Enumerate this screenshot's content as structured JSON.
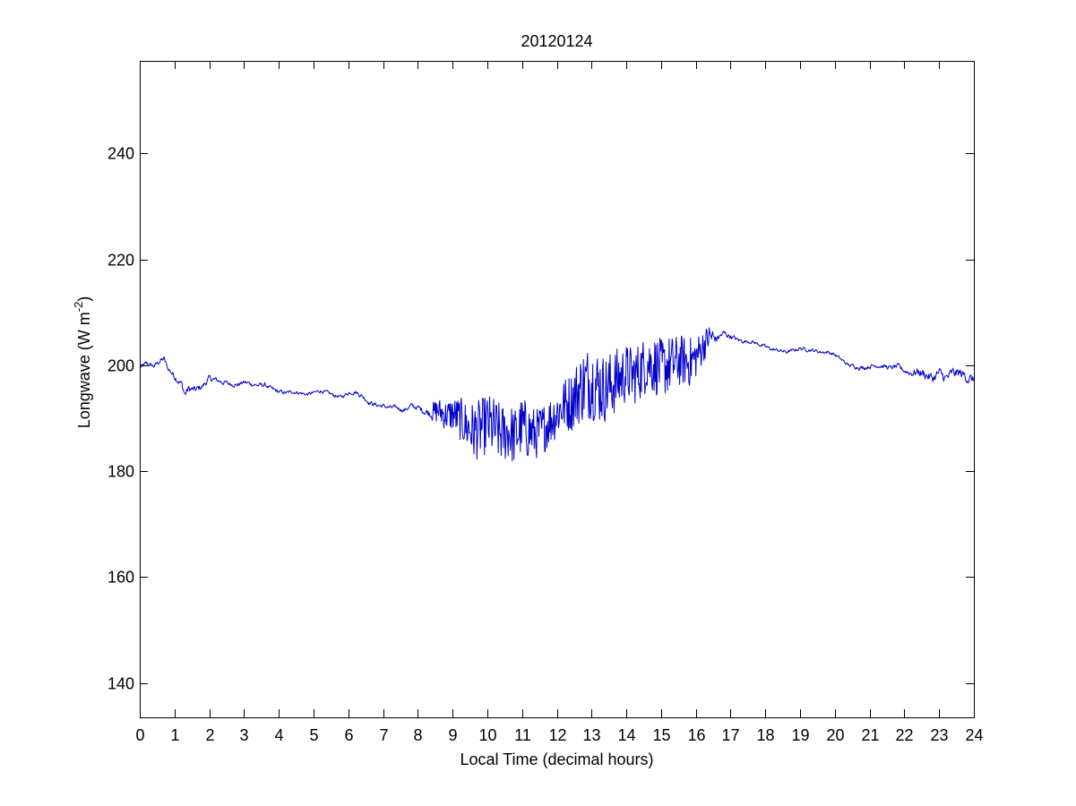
{
  "chart_data": {
    "type": "line",
    "title": "20120124",
    "xlabel": "Local Time (decimal hours)",
    "ylabel": {
      "text": "Longwave (W m",
      "superscript": "-2",
      "suffix": ")"
    },
    "xlim": [
      0,
      24
    ],
    "ylim": [
      133.5,
      257.5
    ],
    "xticks": [
      0,
      1,
      2,
      3,
      4,
      5,
      6,
      7,
      8,
      9,
      10,
      11,
      12,
      13,
      14,
      15,
      16,
      17,
      18,
      19,
      20,
      21,
      22,
      23,
      24
    ],
    "yticks": [
      140,
      160,
      180,
      200,
      220,
      240
    ],
    "grid": false,
    "line_color": "#0000cc",
    "series": [
      {
        "x": [
          0.0,
          0.2,
          0.4,
          0.6,
          0.7,
          0.8,
          1.0,
          1.2,
          1.3,
          1.4,
          1.6,
          1.8,
          2.0,
          2.2,
          2.4,
          2.6,
          2.8,
          3.0,
          3.2,
          3.4,
          3.6,
          3.8,
          4.0,
          4.2,
          4.4,
          4.6,
          4.8,
          5.0,
          5.2,
          5.4,
          5.6,
          5.8,
          6.0,
          6.2,
          6.4,
          6.6,
          6.8,
          7.0,
          7.2,
          7.4,
          7.6,
          7.8,
          8.0,
          8.2,
          8.4,
          8.6,
          8.8,
          9.0,
          9.2,
          9.4,
          9.6,
          9.8,
          10.0,
          10.2,
          10.4,
          10.6,
          10.8,
          11.0,
          11.2,
          11.4,
          11.6,
          11.8,
          12.0,
          12.2,
          12.4,
          12.6,
          12.8,
          13.0,
          13.2,
          13.4,
          13.6,
          13.8,
          14.0,
          14.2,
          14.4,
          14.6,
          14.8,
          15.0,
          15.2,
          15.4,
          15.6,
          15.8,
          16.0,
          16.2,
          16.4,
          16.6,
          16.8,
          17.0,
          17.2,
          17.4,
          17.6,
          17.8,
          18.0,
          18.2,
          18.4,
          18.6,
          18.8,
          19.0,
          19.2,
          19.4,
          19.6,
          19.8,
          20.0,
          20.2,
          20.4,
          20.6,
          20.8,
          21.0,
          21.2,
          21.4,
          21.6,
          21.8,
          22.0,
          22.2,
          22.4,
          22.6,
          22.8,
          23.0,
          23.2,
          23.4,
          23.6,
          23.8,
          24.0
        ],
        "y": [
          199.5,
          200.3,
          199.8,
          200.9,
          201.2,
          199.5,
          198.0,
          196.5,
          194.5,
          195.5,
          195.3,
          196.0,
          197.5,
          197.2,
          196.8,
          196.5,
          196.3,
          196.8,
          196.5,
          196.2,
          196.3,
          195.5,
          195.0,
          194.8,
          195.0,
          194.8,
          194.5,
          194.8,
          195.2,
          194.8,
          194.3,
          194.0,
          194.8,
          195.0,
          194.2,
          193.0,
          192.5,
          192.3,
          192.0,
          192.0,
          191.5,
          192.3,
          192.0,
          191.3,
          191.0,
          191.5,
          190.5,
          190.8,
          190.0,
          188.5,
          187.5,
          188.0,
          189.0,
          188.0,
          187.0,
          187.5,
          186.5,
          188.5,
          187.5,
          187.0,
          188.0,
          189.5,
          191.0,
          192.5,
          193.0,
          195.0,
          196.5,
          197.0,
          196.0,
          195.5,
          196.5,
          197.5,
          198.5,
          198.0,
          199.0,
          200.5,
          200.0,
          199.5,
          200.0,
          200.5,
          201.0,
          200.5,
          201.5,
          203.5,
          205.5,
          205.0,
          206.0,
          205.5,
          204.8,
          204.5,
          204.5,
          204.0,
          203.5,
          203.0,
          202.8,
          202.5,
          202.8,
          203.2,
          203.0,
          202.8,
          202.5,
          202.5,
          202.0,
          201.0,
          200.0,
          199.8,
          199.5,
          199.8,
          200.0,
          199.8,
          199.5,
          199.8,
          199.0,
          198.5,
          198.8,
          198.3,
          197.5,
          198.5,
          197.5,
          198.5,
          198.5,
          197.8,
          197.0
        ],
        "noise_amplitude": [
          0.6,
          0.6,
          0.5,
          0.6,
          0.6,
          0.6,
          0.8,
          0.8,
          1.0,
          0.9,
          0.8,
          0.7,
          0.7,
          0.6,
          0.6,
          0.5,
          0.5,
          0.5,
          0.5,
          0.5,
          0.5,
          0.5,
          0.5,
          0.4,
          0.4,
          0.4,
          0.4,
          0.4,
          0.4,
          0.4,
          0.4,
          0.4,
          0.5,
          0.5,
          0.5,
          0.5,
          0.5,
          0.5,
          0.5,
          0.5,
          0.5,
          0.6,
          0.6,
          0.8,
          1.2,
          1.5,
          1.8,
          2.0,
          2.5,
          3.0,
          3.5,
          3.5,
          3.5,
          3.8,
          3.5,
          3.5,
          3.5,
          3.5,
          3.5,
          3.0,
          3.0,
          3.0,
          3.0,
          3.2,
          3.5,
          4.0,
          4.5,
          4.5,
          4.5,
          4.0,
          4.0,
          3.8,
          3.5,
          3.5,
          3.5,
          3.5,
          3.5,
          3.5,
          3.5,
          3.2,
          3.0,
          3.0,
          2.5,
          2.0,
          1.5,
          1.0,
          0.8,
          0.6,
          0.5,
          0.4,
          0.4,
          0.4,
          0.4,
          0.4,
          0.4,
          0.4,
          0.4,
          0.4,
          0.4,
          0.4,
          0.4,
          0.4,
          0.4,
          0.4,
          0.4,
          0.5,
          0.5,
          0.5,
          0.5,
          0.5,
          0.5,
          0.6,
          0.6,
          0.8,
          1.0,
          1.2,
          1.2,
          1.2,
          1.2,
          1.2,
          1.2,
          1.2,
          1.2
        ]
      }
    ]
  }
}
